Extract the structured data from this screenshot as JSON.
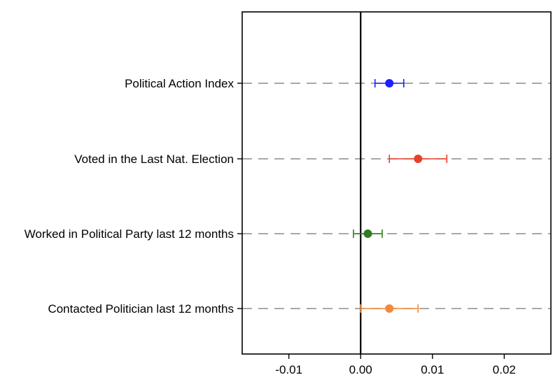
{
  "chart_data": {
    "type": "scatter",
    "subtype": "coefficient-plot-horizontal",
    "title": "",
    "xlabel": "",
    "ylabel": "",
    "xlim": [
      -0.0165,
      0.0265
    ],
    "xticks": [
      -0.01,
      0.0,
      0.01,
      0.02
    ],
    "xtick_labels": [
      "-0.01",
      "0.00",
      "0.01",
      "0.02"
    ],
    "reference_line_x": 0,
    "grid": "horizontal dashed lines at each category",
    "legend": "none",
    "categories": [
      "Political Action Index",
      "Voted in the Last Nat. Election",
      "Worked in Political Party last 12 months",
      "Contacted Politician last 12 months"
    ],
    "estimates": [
      0.004,
      0.008,
      0.001,
      0.004
    ],
    "ci_low": [
      0.002,
      0.004,
      -0.001,
      0.0
    ],
    "ci_high": [
      0.006,
      0.012,
      0.003,
      0.008
    ],
    "colors": [
      "#1f1fff",
      "#e8402a",
      "#2e7d1e",
      "#f08a3c"
    ],
    "frame_color": "#000000",
    "grid_color": "#8c8c8c"
  }
}
